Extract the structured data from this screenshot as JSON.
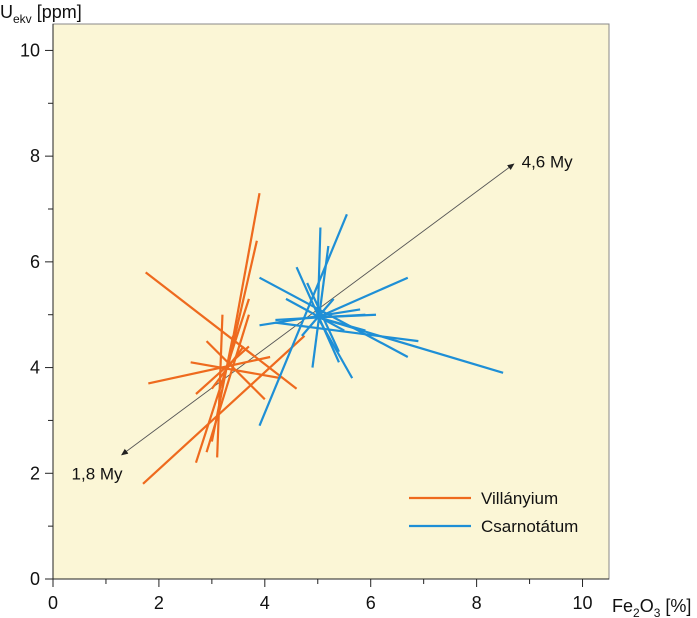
{
  "chart_data": {
    "type": "line",
    "title": "",
    "xlabel": {
      "pre": "Fe",
      "sub1": "2",
      "mid": "O",
      "sub2": "3",
      "post": " [%]"
    },
    "ylabel": {
      "pre": "U",
      "sub": "ekv",
      "post": " [ppm]"
    },
    "xlim": [
      0,
      10.5
    ],
    "ylim": [
      0,
      10.5
    ],
    "x_ticks": [
      "0",
      "2",
      "4",
      "6",
      "8",
      "10"
    ],
    "y_ticks": [
      "0",
      "2",
      "4",
      "6",
      "8",
      "10"
    ],
    "x_tick_values": [
      0,
      2,
      4,
      6,
      8,
      10
    ],
    "y_tick_values": [
      0,
      2,
      4,
      6,
      8,
      10
    ],
    "x_minor_tick_values": [
      1,
      3,
      5,
      7,
      9
    ],
    "y_minor_tick_values": [
      1,
      3,
      5,
      7,
      9
    ],
    "grid": false,
    "background_color": "#fbf6d6",
    "legend_position": "bottom-right",
    "series": [
      {
        "name": "Villányium",
        "color": "#ee6a1e",
        "center": [
          3.3,
          4.0
        ],
        "segments": [
          [
            [
              1.75,
              5.8
            ],
            [
              4.6,
              3.6
            ]
          ],
          [
            [
              1.7,
              1.8
            ],
            [
              4.75,
              4.6
            ]
          ],
          [
            [
              3.3,
              4.0
            ],
            [
              3.9,
              7.3
            ]
          ],
          [
            [
              3.3,
              4.0
            ],
            [
              3.85,
              6.4
            ]
          ],
          [
            [
              2.7,
              2.2
            ],
            [
              3.7,
              5.3
            ]
          ],
          [
            [
              3.0,
              2.6
            ],
            [
              3.4,
              4.6
            ]
          ],
          [
            [
              3.1,
              2.3
            ],
            [
              3.2,
              5.0
            ]
          ],
          [
            [
              2.9,
              2.4
            ],
            [
              3.7,
              5.0
            ]
          ],
          [
            [
              1.8,
              3.7
            ],
            [
              4.1,
              4.2
            ]
          ],
          [
            [
              2.6,
              4.1
            ],
            [
              4.3,
              3.8
            ]
          ],
          [
            [
              2.7,
              3.5
            ],
            [
              3.7,
              4.4
            ]
          ],
          [
            [
              2.9,
              4.5
            ],
            [
              4.0,
              3.4
            ]
          ],
          [
            [
              3.0,
              3.6
            ],
            [
              3.6,
              4.4
            ]
          ]
        ]
      },
      {
        "name": "Csarnotátum",
        "color": "#1e8fd6",
        "center": [
          5.0,
          4.95
        ],
        "segments": [
          [
            [
              3.9,
              2.9
            ],
            [
              5.55,
              6.9
            ]
          ],
          [
            [
              3.9,
              5.7
            ],
            [
              6.7,
              4.2
            ]
          ],
          [
            [
              5.0,
              4.95
            ],
            [
              8.5,
              3.9
            ]
          ],
          [
            [
              4.2,
              4.85
            ],
            [
              6.9,
              4.5
            ]
          ],
          [
            [
              5.0,
              4.95
            ],
            [
              6.7,
              5.7
            ]
          ],
          [
            [
              5.0,
              4.95
            ],
            [
              6.1,
              5.0
            ]
          ],
          [
            [
              5.0,
              4.95
            ],
            [
              5.65,
              3.8
            ]
          ],
          [
            [
              5.0,
              4.95
            ],
            [
              5.05,
              6.65
            ]
          ],
          [
            [
              4.6,
              5.9
            ],
            [
              5.4,
              4.1
            ]
          ],
          [
            [
              3.9,
              4.8
            ],
            [
              5.8,
              5.1
            ]
          ],
          [
            [
              4.9,
              4.0
            ],
            [
              5.2,
              6.3
            ]
          ],
          [
            [
              4.4,
              5.3
            ],
            [
              5.5,
              4.7
            ]
          ],
          [
            [
              4.8,
              5.6
            ],
            [
              5.4,
              4.3
            ]
          ],
          [
            [
              4.2,
              4.9
            ],
            [
              5.9,
              5.0
            ]
          ],
          [
            [
              4.7,
              4.6
            ],
            [
              5.3,
              5.3
            ]
          ],
          [
            [
              5.0,
              4.95
            ],
            [
              5.9,
              4.7
            ]
          ]
        ]
      }
    ],
    "annotations": [
      {
        "text": "1,8 My",
        "x": 0.35,
        "y": 2.0
      },
      {
        "text": "4,6 My",
        "x": 8.85,
        "y": 7.9
      }
    ],
    "trend_arrow": {
      "from": [
        1.3,
        2.35
      ],
      "to": [
        8.7,
        7.85
      ],
      "color": "#555555"
    }
  }
}
